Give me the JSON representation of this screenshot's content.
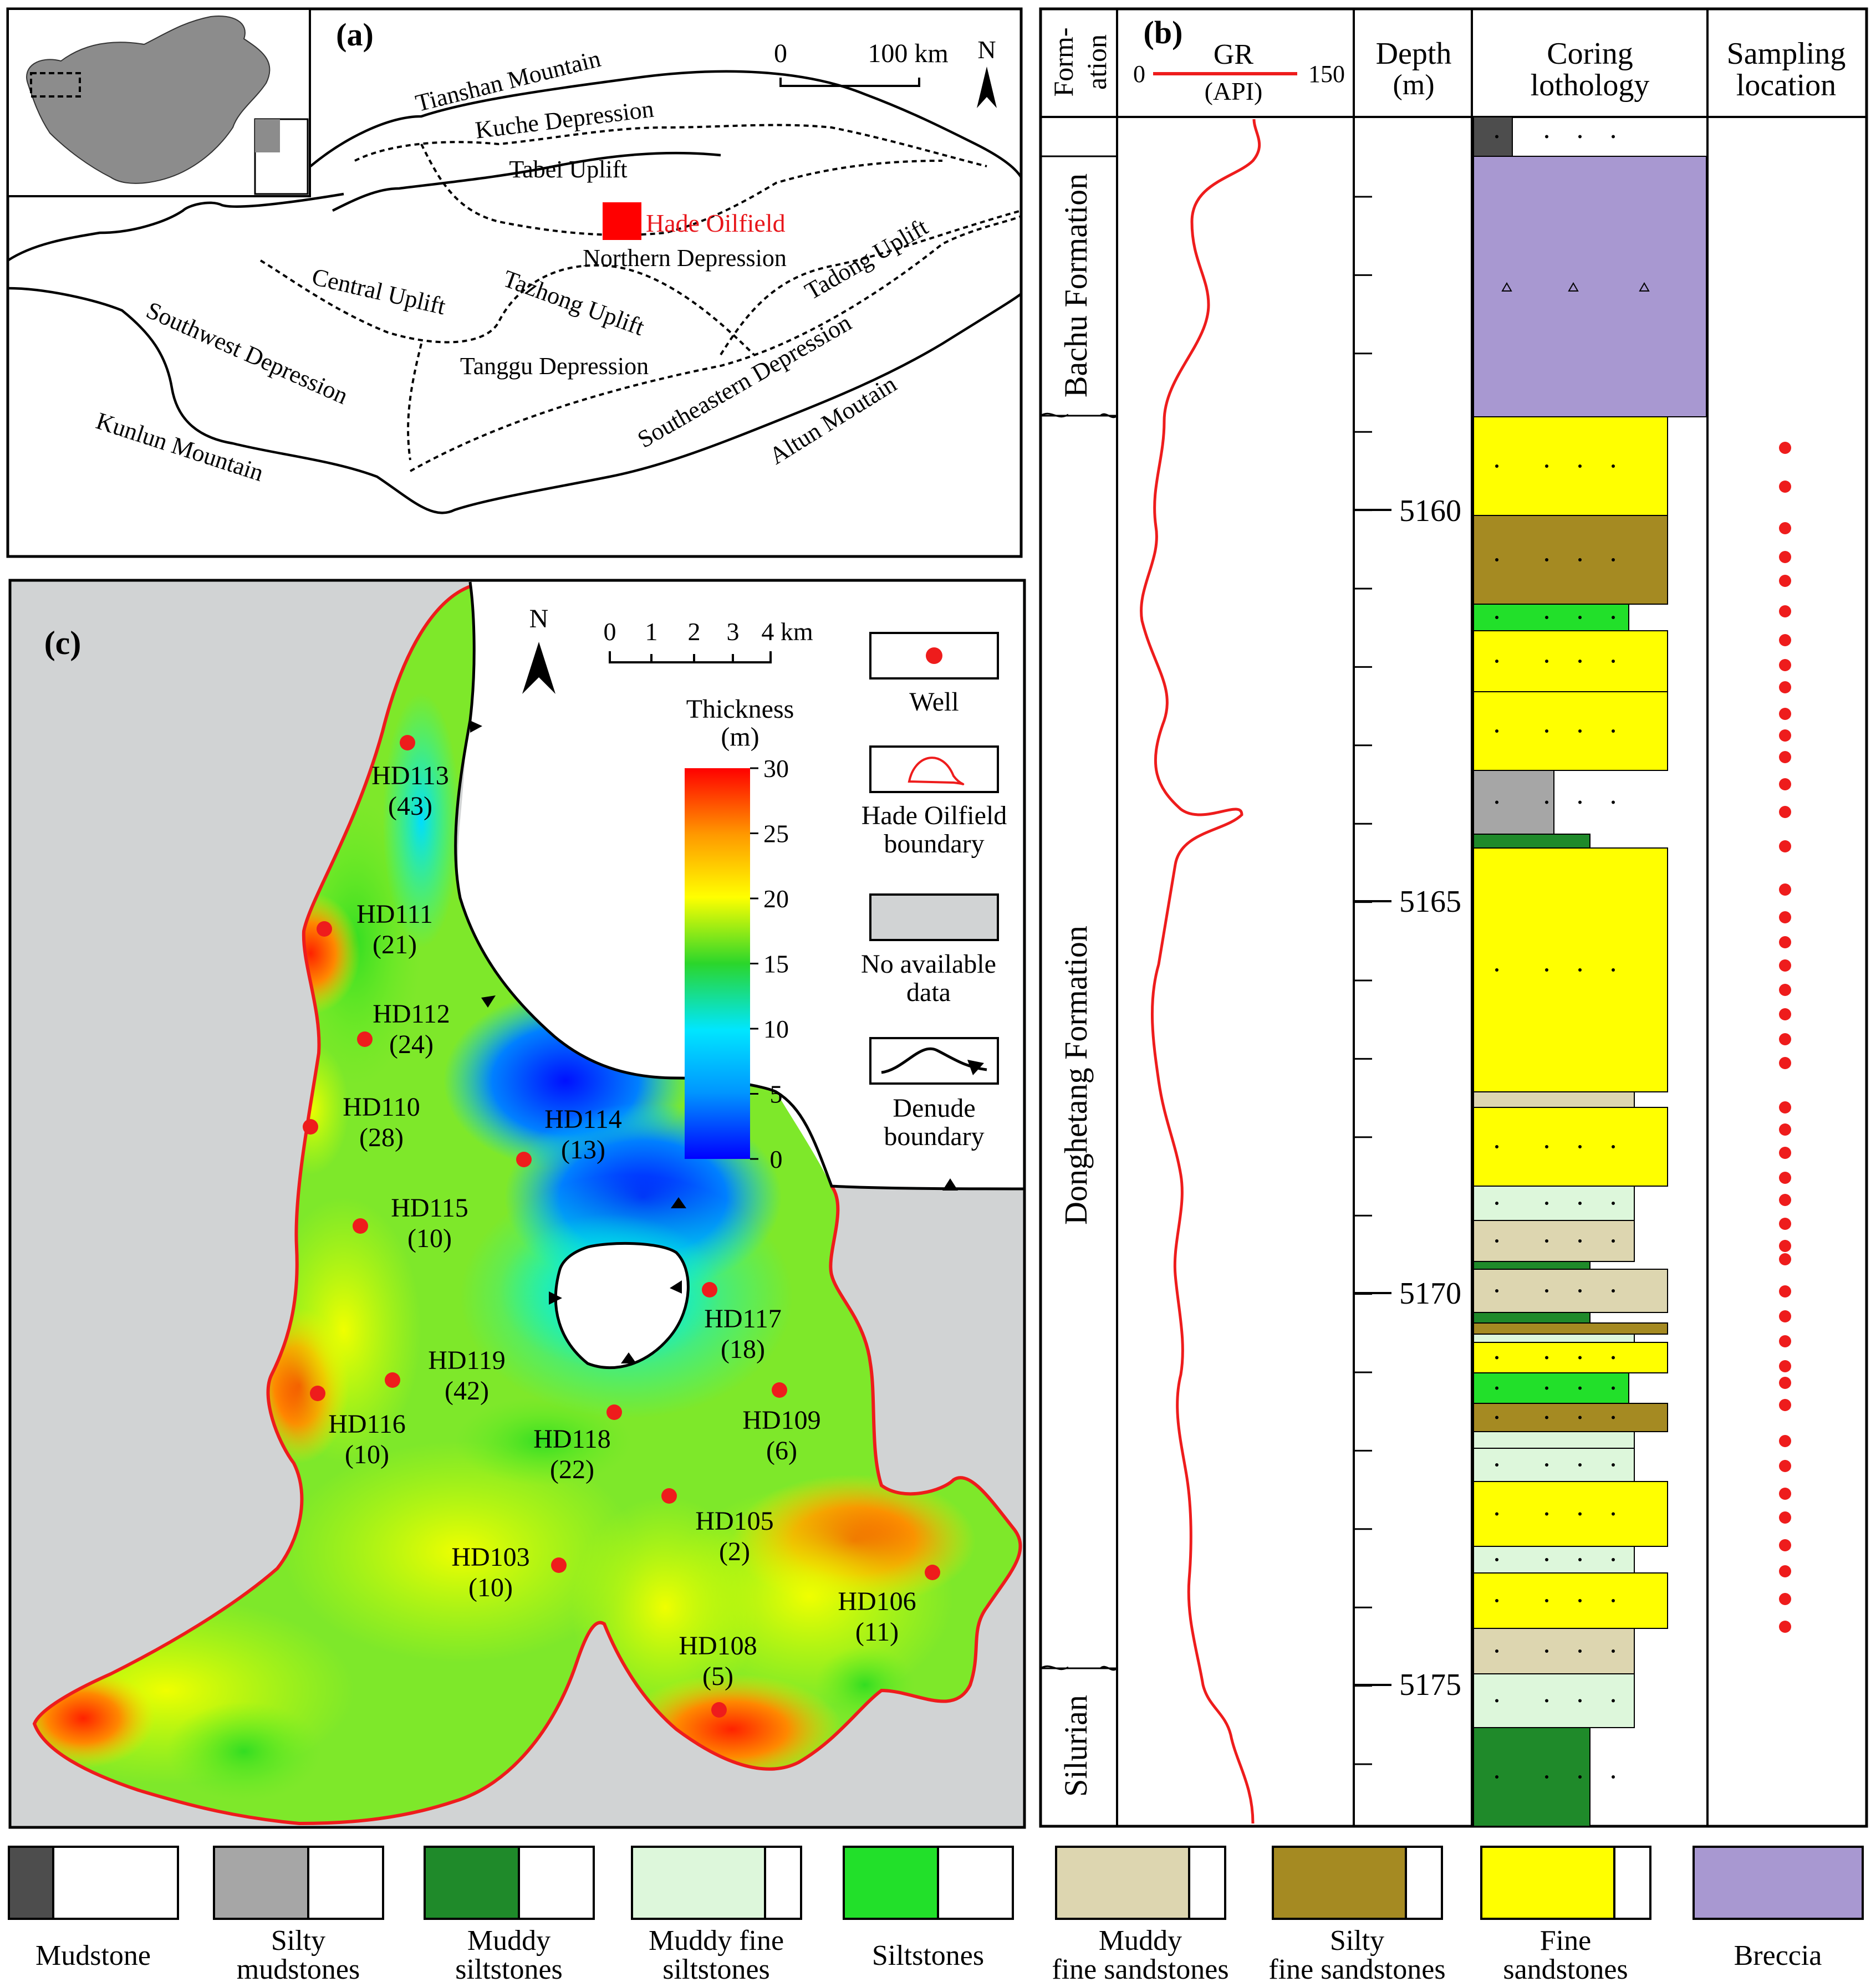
{
  "panel_a": {
    "label": "(a)",
    "scale": {
      "zero": "0",
      "distance": "100 km"
    },
    "north": "N",
    "regions": [
      "Tianshan Mountain",
      "Kuche Depression",
      "Tabei Uplift",
      "Northern Depression",
      "Central Uplift",
      "Tazhong Uplift",
      "Tadong Uplift",
      "Southwest Depression",
      "Tanggu Depression",
      "Southeastern Depression",
      "Kunlun Mountain",
      "Altun Moutain"
    ],
    "oilfield": "Hade Oilfield"
  },
  "panel_b": {
    "label": "(b)",
    "headers": {
      "formation_1": "Form-",
      "formation_2": "ation",
      "gr": "GR",
      "gr_unit": "(API)",
      "gr_min": "0",
      "gr_max": "150",
      "depth_1": "Depth",
      "depth_2": "(m)",
      "coring_1": "Coring",
      "coring_2": "lothology",
      "sampling_1": "Sampling",
      "sampling_2": "location"
    },
    "formations": [
      "Bachu Formation",
      "Donghetang Formation",
      "Silurian"
    ],
    "depth_labels": [
      "5160",
      "5165",
      "5170",
      "5175"
    ]
  },
  "panel_c": {
    "label": "(c)",
    "north": "N",
    "scale": [
      "0",
      "1",
      "2",
      "3",
      "4 km"
    ],
    "colorbar": {
      "title_1": "Thickness",
      "title_2": "(m)",
      "ticks": [
        "30",
        "25",
        "20",
        "15",
        "10",
        "5",
        "0"
      ]
    },
    "legend": {
      "well": "Well",
      "boundary_1": "Hade Oilfield",
      "boundary_2": "boundary",
      "nodata_1": "No available",
      "nodata_2": "data",
      "denude_1": "Denude",
      "denude_2": "boundary"
    },
    "wells": [
      {
        "name": "HD113",
        "value": "(43)"
      },
      {
        "name": "HD111",
        "value": "(21)"
      },
      {
        "name": "HD112",
        "value": "(24)"
      },
      {
        "name": "HD110",
        "value": "(28)"
      },
      {
        "name": "HD114",
        "value": "(13)"
      },
      {
        "name": "HD115",
        "value": "(10)"
      },
      {
        "name": "HD117",
        "value": "(18)"
      },
      {
        "name": "HD119",
        "value": "(42)"
      },
      {
        "name": "HD116",
        "value": "(10)"
      },
      {
        "name": "HD118",
        "value": "(22)"
      },
      {
        "name": "HD109",
        "value": "(6)"
      },
      {
        "name": "HD105",
        "value": "(2)"
      },
      {
        "name": "HD103",
        "value": "(10)"
      },
      {
        "name": "HD106",
        "value": "(11)"
      },
      {
        "name": "HD108",
        "value": "(5)"
      }
    ]
  },
  "lithology_legend": [
    {
      "line1": "Mudstone",
      "line2": "",
      "color": "#4d4d4d"
    },
    {
      "line1": "Silty",
      "line2": "mudstones",
      "color": "#a6a6a6"
    },
    {
      "line1": "Muddy",
      "line2": "siltstones",
      "color": "#1f8a2a"
    },
    {
      "line1": "Muddy fine",
      "line2": "siltstones",
      "color": "#ddf7db"
    },
    {
      "line1": "Siltstones",
      "line2": "",
      "color": "#22e02a"
    },
    {
      "line1": "Muddy",
      "line2": "fine sandstones",
      "color": "#ddd6b0"
    },
    {
      "line1": "Silty",
      "line2": "fine sandstones",
      "color": "#a58a22"
    },
    {
      "line1": "Fine",
      "line2": "sandstones",
      "color": "#ffff00"
    },
    {
      "line1": "Breccia",
      "line2": "",
      "color": "#a898d1"
    }
  ]
}
